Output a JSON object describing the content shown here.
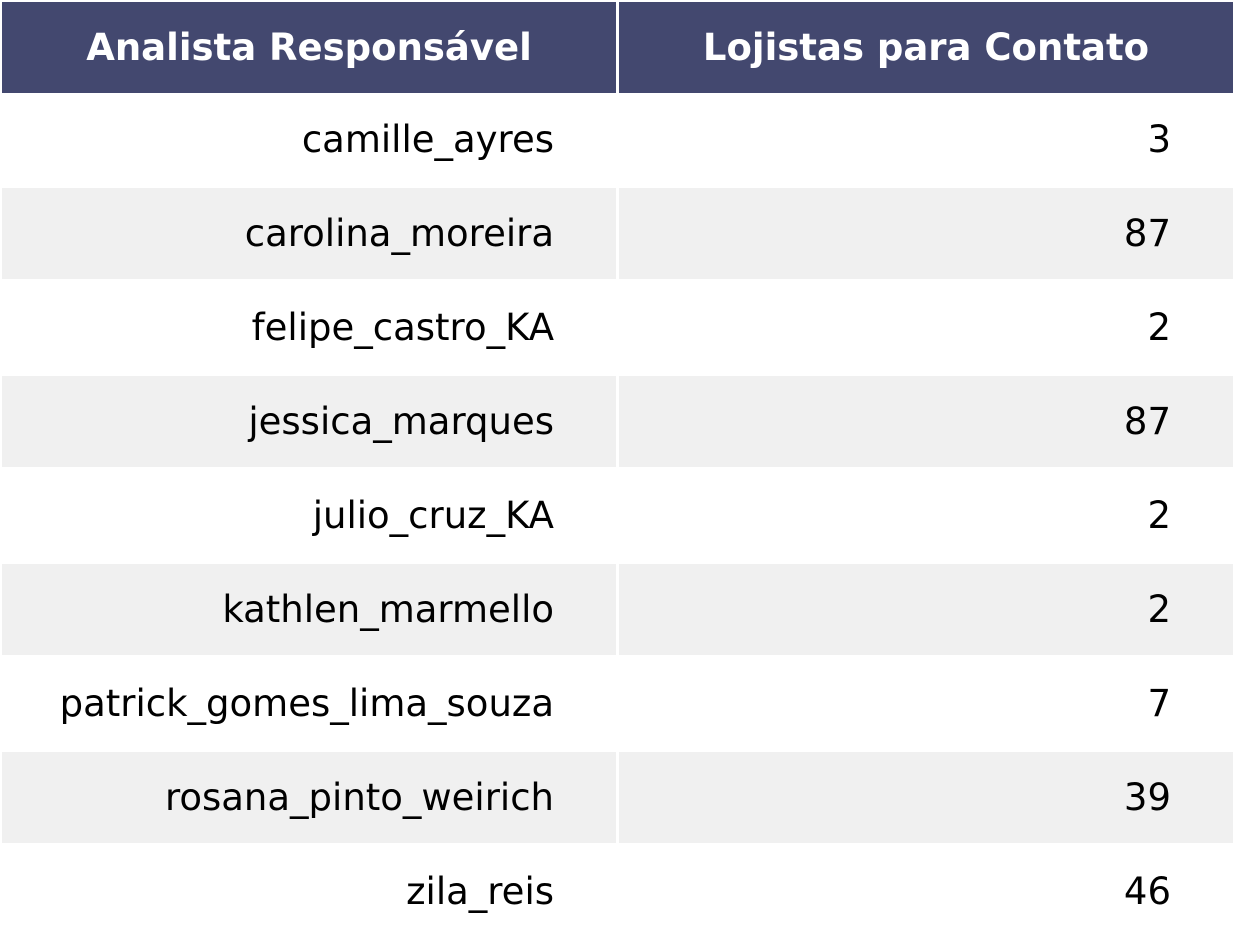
{
  "chart_data": {
    "type": "table",
    "columns": [
      "Analista Responsável",
      "Lojistas para Contato"
    ],
    "rows": [
      [
        "camille_ayres",
        3
      ],
      [
        "carolina_moreira",
        87
      ],
      [
        "felipe_castro_KA",
        2
      ],
      [
        "jessica_marques",
        87
      ],
      [
        "julio_cruz_KA",
        2
      ],
      [
        "kathlen_marmello",
        2
      ],
      [
        "patrick_gomes_lima_souza",
        7
      ],
      [
        "rosana_pinto_weirich",
        39
      ],
      [
        "zila_reis",
        46
      ]
    ],
    "header_color": "#43486f",
    "header_text_color": "#ffffff",
    "stripe_color": "#f0f0f0",
    "background_color": "#ffffff"
  }
}
